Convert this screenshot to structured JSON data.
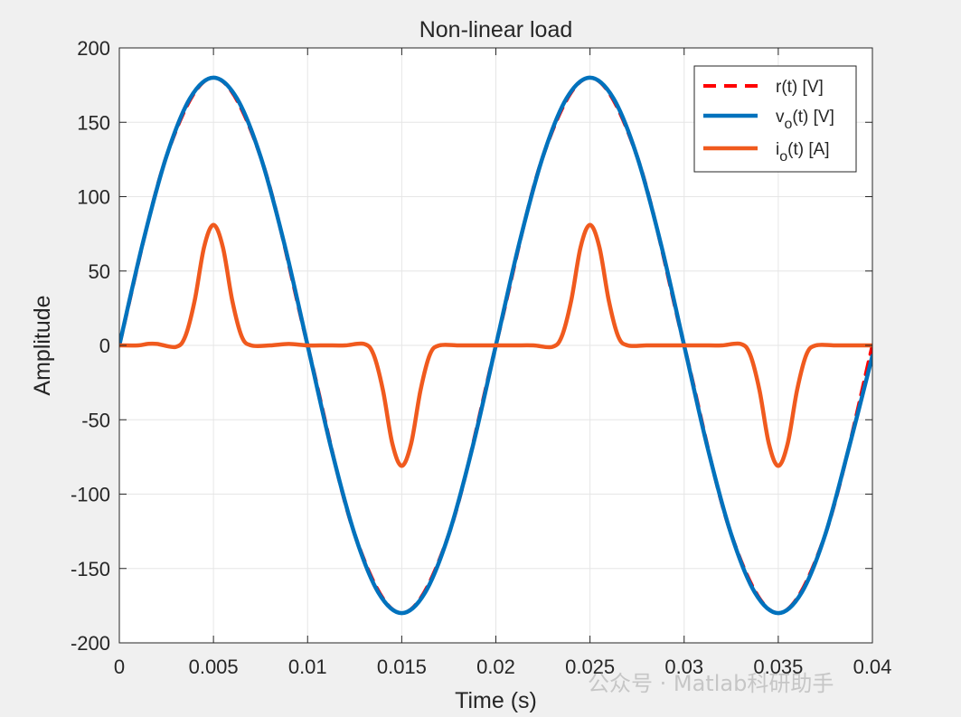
{
  "chart_data": {
    "type": "line",
    "title": "Non-linear load",
    "xlabel": "Time (s)",
    "ylabel": "Amplitude",
    "xlim": [
      0,
      0.04
    ],
    "ylim": [
      -200,
      200
    ],
    "grid": true,
    "legend_position": "top-right",
    "x_tick_labels": [
      "0",
      "0.005",
      "0.01",
      "0.015",
      "0.02",
      "0.025",
      "0.03",
      "0.035",
      "0.04"
    ],
    "y_tick_labels": [
      "200",
      "150",
      "100",
      "50",
      "0",
      "-50",
      "-100",
      "-150",
      "-200"
    ],
    "x_ticks": [
      0,
      0.005,
      0.01,
      0.015,
      0.02,
      0.025,
      0.03,
      0.035,
      0.04
    ],
    "y_ticks": [
      200,
      150,
      100,
      50,
      0,
      -50,
      -100,
      -150,
      -200
    ],
    "series": [
      {
        "name": "r(t) [V]",
        "legend_main": "r(t) [V]",
        "legend_sub": "",
        "legend_rest": "",
        "color": "#ff0000",
        "style": "dashed",
        "x": [
          0,
          0.0025,
          0.005,
          0.0075,
          0.01,
          0.0125,
          0.015,
          0.0175,
          0.02,
          0.0225,
          0.025,
          0.0275,
          0.03,
          0.0325,
          0.035,
          0.0375,
          0.04
        ],
        "values": [
          0,
          127,
          180,
          127,
          0,
          -127,
          -180,
          -127,
          0,
          127,
          180,
          127,
          0,
          -127,
          -180,
          -127,
          0
        ]
      },
      {
        "name": "vo(t) [V]",
        "legend_main": "v",
        "legend_sub": "o",
        "legend_rest": "(t) [V]",
        "color": "#0072bd",
        "style": "solid",
        "x": [
          0,
          0.00125,
          0.0025,
          0.00375,
          0.005,
          0.00625,
          0.0075,
          0.00875,
          0.01,
          0.01125,
          0.0125,
          0.01375,
          0.015,
          0.01625,
          0.0175,
          0.01875,
          0.02,
          0.02125,
          0.0225,
          0.02375,
          0.025,
          0.02625,
          0.0275,
          0.02875,
          0.03,
          0.03125,
          0.0325,
          0.03375,
          0.035,
          0.03625,
          0.0375,
          0.03875,
          0.04
        ],
        "values": [
          0,
          69,
          127,
          166,
          180,
          166,
          127,
          69,
          0,
          -69,
          -127,
          -166,
          -180,
          -166,
          -127,
          -69,
          0,
          69,
          127,
          166,
          180,
          166,
          127,
          69,
          0,
          -69,
          -127,
          -166,
          -180,
          -166,
          -127,
          -69,
          -7
        ]
      },
      {
        "name": "io(t) [A]",
        "legend_main": "i",
        "legend_sub": "o",
        "legend_rest": "(t) [A]",
        "color": "#f05a1e",
        "style": "solid",
        "x": [
          0,
          0.001,
          0.0015,
          0.002,
          0.003,
          0.0035,
          0.004,
          0.0045,
          0.005,
          0.0055,
          0.006,
          0.0065,
          0.007,
          0.008,
          0.009,
          0.01,
          0.011,
          0.012,
          0.013,
          0.0135,
          0.014,
          0.0145,
          0.015,
          0.0155,
          0.016,
          0.0165,
          0.017,
          0.018,
          0.019,
          0.02,
          0.021,
          0.022,
          0.023,
          0.0235,
          0.024,
          0.0245,
          0.025,
          0.0255,
          0.026,
          0.0265,
          0.027,
          0.028,
          0.029,
          0.03,
          0.031,
          0.032,
          0.033,
          0.0335,
          0.034,
          0.0345,
          0.035,
          0.0355,
          0.036,
          0.0365,
          0.037,
          0.038,
          0.039,
          0.04
        ],
        "values": [
          0,
          0,
          1,
          1,
          -1,
          6,
          30,
          66,
          81,
          66,
          30,
          6,
          0,
          0,
          1,
          0,
          0,
          0,
          1,
          -6,
          -30,
          -66,
          -81,
          -66,
          -30,
          -6,
          0,
          0,
          0,
          0,
          0,
          0,
          -1,
          6,
          30,
          66,
          81,
          66,
          30,
          6,
          0,
          0,
          0,
          0,
          0,
          0,
          1,
          -6,
          -30,
          -66,
          -81,
          -66,
          -30,
          -6,
          0,
          0,
          0,
          0
        ]
      }
    ]
  },
  "watermark": "公众号 · Matlab科研助手"
}
